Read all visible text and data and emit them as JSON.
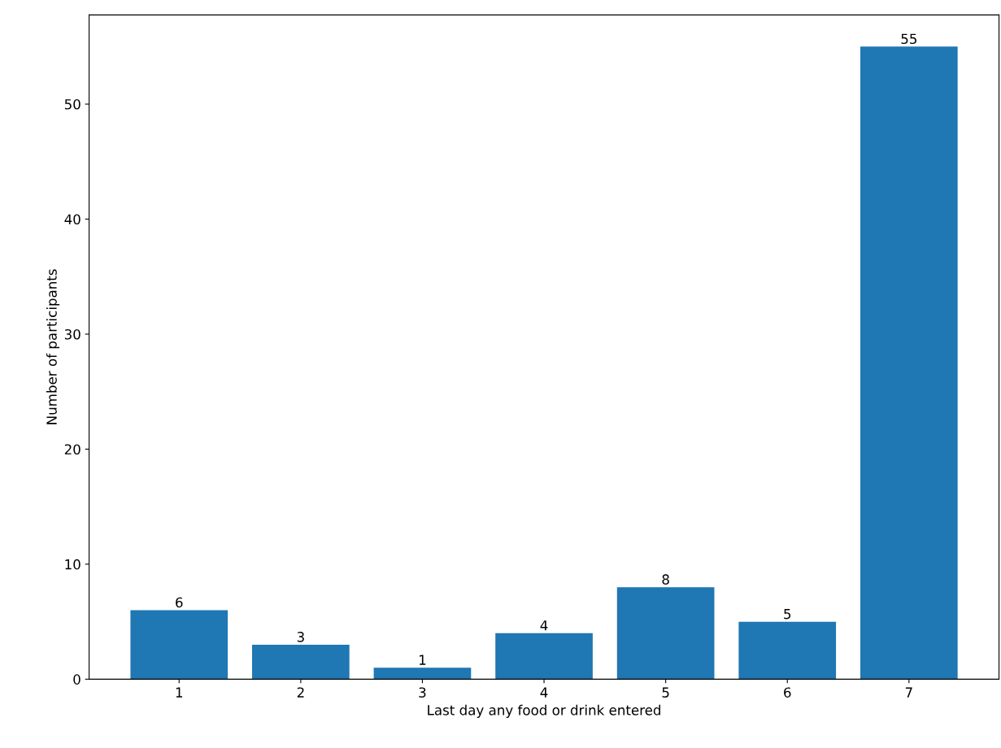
{
  "chart_data": {
    "type": "bar",
    "xlabel": "Last day any food or drink entered",
    "ylabel": "Number of participants",
    "categories": [
      "1",
      "2",
      "3",
      "4",
      "5",
      "6",
      "7"
    ],
    "values": [
      6,
      3,
      1,
      4,
      8,
      5,
      55
    ],
    "color": "#1f77b4",
    "ylim": [
      0,
      57.75
    ],
    "yticks": [
      0,
      10,
      20,
      30,
      40,
      50
    ],
    "data_labels": true,
    "grid": false
  }
}
